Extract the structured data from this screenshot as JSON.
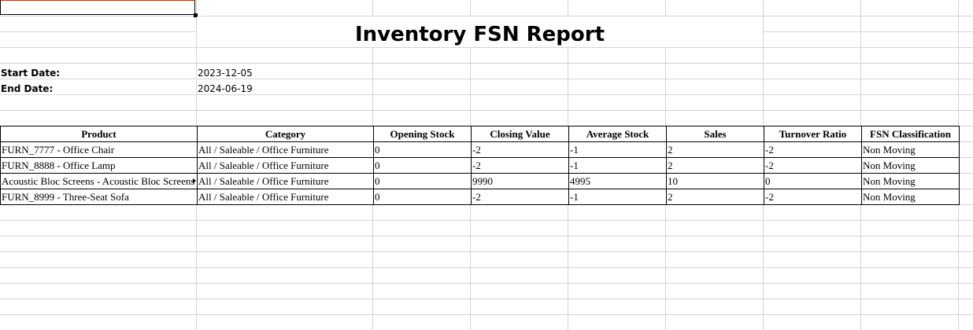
{
  "report": {
    "title": "Inventory FSN Report",
    "start_label": "Start Date:",
    "start_value": "2023-12-05",
    "end_label": "End Date:",
    "end_value": "2024-06-19"
  },
  "table": {
    "headers": [
      "Product",
      "Category",
      "Opening Stock",
      "Closing Value",
      "Average Stock",
      "Sales",
      "Turnover Ratio",
      "FSN Classification"
    ],
    "rows": [
      [
        "FURN_7777 - Office Chair",
        "All / Saleable / Office Furniture",
        "0",
        "-2",
        "-1",
        "2",
        "-2",
        "Non Moving"
      ],
      [
        "FURN_8888 - Office Lamp",
        "All / Saleable / Office Furniture",
        "0",
        "-2",
        "-1",
        "2",
        "-2",
        "Non Moving"
      ],
      [
        "Acoustic Bloc Screens - Acoustic Bloc Screens",
        "All / Saleable / Office Furniture",
        "0",
        "9990",
        "4995",
        "10",
        "0",
        "Non Moving"
      ],
      [
        "FURN_8999 - Three-Seat Sofa",
        "All / Saleable / Office Furniture",
        "0",
        "-2",
        "-1",
        "2",
        "-2",
        "Non Moving"
      ]
    ]
  }
}
